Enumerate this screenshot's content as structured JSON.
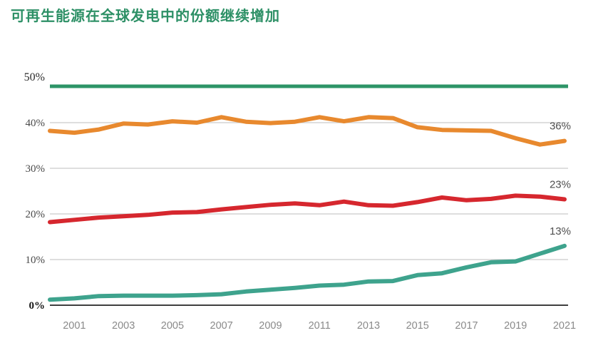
{
  "title": "可再生能源在全球发电中的份额继续增加",
  "colors": {
    "title_green": "#2d9066",
    "top_rule_green": "#2d9467",
    "gridline": "#c9c9c9",
    "axis_line": "#3f3f3f",
    "x_label": "#8a8a8a",
    "y_label": "#4a4a4a",
    "end_label": "#4f4f4f",
    "background": "#ffffff"
  },
  "chart_data": {
    "type": "line",
    "x": [
      2000,
      2001,
      2002,
      2003,
      2004,
      2005,
      2006,
      2007,
      2008,
      2009,
      2010,
      2011,
      2012,
      2013,
      2014,
      2015,
      2016,
      2017,
      2018,
      2019,
      2020,
      2021
    ],
    "series": [
      {
        "name": "orange-line",
        "color": "#e8892e",
        "end_label": "36%",
        "values": [
          38.2,
          37.8,
          38.5,
          39.8,
          39.6,
          40.3,
          40.0,
          41.2,
          40.2,
          39.9,
          40.2,
          41.2,
          40.3,
          41.2,
          41.0,
          39.0,
          38.4,
          38.3,
          38.2,
          36.6,
          35.2,
          36.0
        ]
      },
      {
        "name": "red-line",
        "color": "#d6272e",
        "end_label": "23%",
        "values": [
          18.2,
          18.7,
          19.2,
          19.5,
          19.8,
          20.3,
          20.4,
          21.0,
          21.5,
          22.0,
          22.3,
          21.9,
          22.7,
          21.9,
          21.8,
          22.6,
          23.6,
          23.0,
          23.3,
          24.0,
          23.8,
          23.2
        ]
      },
      {
        "name": "teal-line",
        "color": "#3ea38d",
        "end_label": "13%",
        "values": [
          1.2,
          1.5,
          2.0,
          2.1,
          2.1,
          2.1,
          2.2,
          2.4,
          3.0,
          3.4,
          3.8,
          4.3,
          4.5,
          5.2,
          5.3,
          6.6,
          7.0,
          8.3,
          9.4,
          9.6,
          11.3,
          13.0
        ]
      }
    ],
    "x_tick_labels": [
      "2001",
      "2003",
      "2005",
      "2007",
      "2009",
      "2011",
      "2013",
      "2015",
      "2017",
      "2019",
      "2021"
    ],
    "y_tick_labels": [
      "0%",
      "10%",
      "20%",
      "30%",
      "40%",
      "50%"
    ],
    "ylim": [
      0,
      50
    ],
    "xlim": [
      2000,
      2021
    ],
    "grid": "horizontal",
    "legend": "none",
    "title": "可再生能源在全球发电中的份额继续增加"
  }
}
